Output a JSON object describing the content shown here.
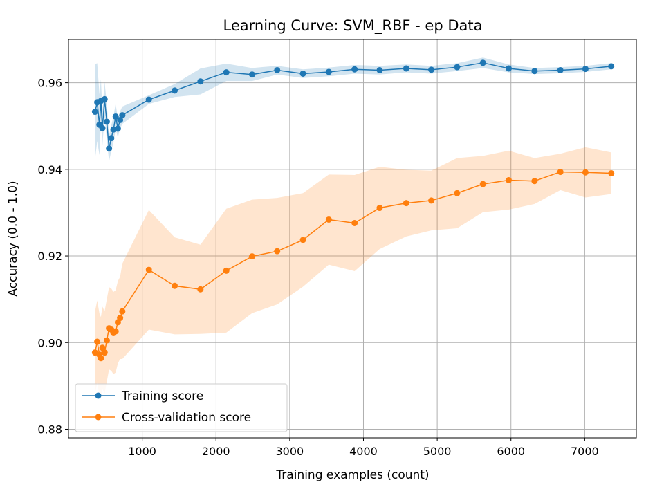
{
  "chart_data": {
    "type": "line",
    "title": "Learning Curve: SVM_RBF - ep Data",
    "xlabel": "Training examples (count)",
    "ylabel": "Accuracy (0.0 - 1.0)",
    "xlim": [
      0,
      7700
    ],
    "ylim": [
      0.878,
      0.97
    ],
    "xticks": [
      1000,
      2000,
      3000,
      4000,
      5000,
      6000,
      7000
    ],
    "yticks": [
      0.88,
      0.9,
      0.92,
      0.94,
      0.96
    ],
    "ytick_labels": [
      "0.88",
      "0.90",
      "0.92",
      "0.94",
      "0.96"
    ],
    "grid": true,
    "legend_position": "lower-left",
    "x": [
      360,
      390,
      420,
      440,
      460,
      490,
      520,
      550,
      580,
      610,
      640,
      670,
      700,
      730,
      1090,
      1440,
      1790,
      2140,
      2490,
      2830,
      3180,
      3530,
      3880,
      4220,
      4580,
      4920,
      5270,
      5620,
      5970,
      6320,
      6670,
      7010,
      7360
    ],
    "series": [
      {
        "name": "Training score",
        "color": "#1f77b4",
        "band_color": "#1f77b4",
        "values": [
          0.9533,
          0.9555,
          0.9503,
          0.9558,
          0.9495,
          0.9562,
          0.951,
          0.9448,
          0.9472,
          0.9492,
          0.9522,
          0.9494,
          0.9514,
          0.9525,
          0.9561,
          0.9582,
          0.9603,
          0.9624,
          0.9619,
          0.9629,
          0.9621,
          0.9625,
          0.9631,
          0.9629,
          0.9633,
          0.963,
          0.9636,
          0.9646,
          0.9633,
          0.9627,
          0.9629,
          0.9632,
          0.9638
        ],
        "band_half_width": [
          0.011,
          0.009,
          0.007,
          0.005,
          0.004,
          0.004,
          0.004,
          0.003,
          0.003,
          0.003,
          0.003,
          0.002,
          0.002,
          0.002,
          0.001,
          0.0015,
          0.003,
          0.002,
          0.0015,
          0.001,
          0.001,
          0.001,
          0.001,
          0.001,
          0.0009,
          0.0009,
          0.0009,
          0.0012,
          0.0009,
          0.0007,
          0.0007,
          0.0007,
          0.0007
        ]
      },
      {
        "name": "Cross-validation score",
        "color": "#ff7f0e",
        "band_color": "#ff7f0e",
        "values": [
          0.8977,
          0.9002,
          0.8972,
          0.8964,
          0.8988,
          0.8977,
          0.9005,
          0.9033,
          0.903,
          0.9022,
          0.9026,
          0.9047,
          0.9057,
          0.9072,
          0.9168,
          0.9131,
          0.9123,
          0.9166,
          0.9199,
          0.9211,
          0.9237,
          0.9284,
          0.9276,
          0.9311,
          0.9322,
          0.9328,
          0.9345,
          0.9366,
          0.9375,
          0.9373,
          0.9394,
          0.9393,
          0.9391
        ],
        "band_half_width": [
          0.0095,
          0.0095,
          0.0095,
          0.0095,
          0.0095,
          0.0095,
          0.0095,
          0.0095,
          0.0095,
          0.0095,
          0.0095,
          0.0095,
          0.0095,
          0.011,
          0.0138,
          0.0112,
          0.0103,
          0.0143,
          0.0131,
          0.0123,
          0.0108,
          0.0104,
          0.0111,
          0.0095,
          0.0077,
          0.0069,
          0.0081,
          0.0065,
          0.0068,
          0.0053,
          0.0042,
          0.0058,
          0.0048
        ]
      }
    ]
  }
}
